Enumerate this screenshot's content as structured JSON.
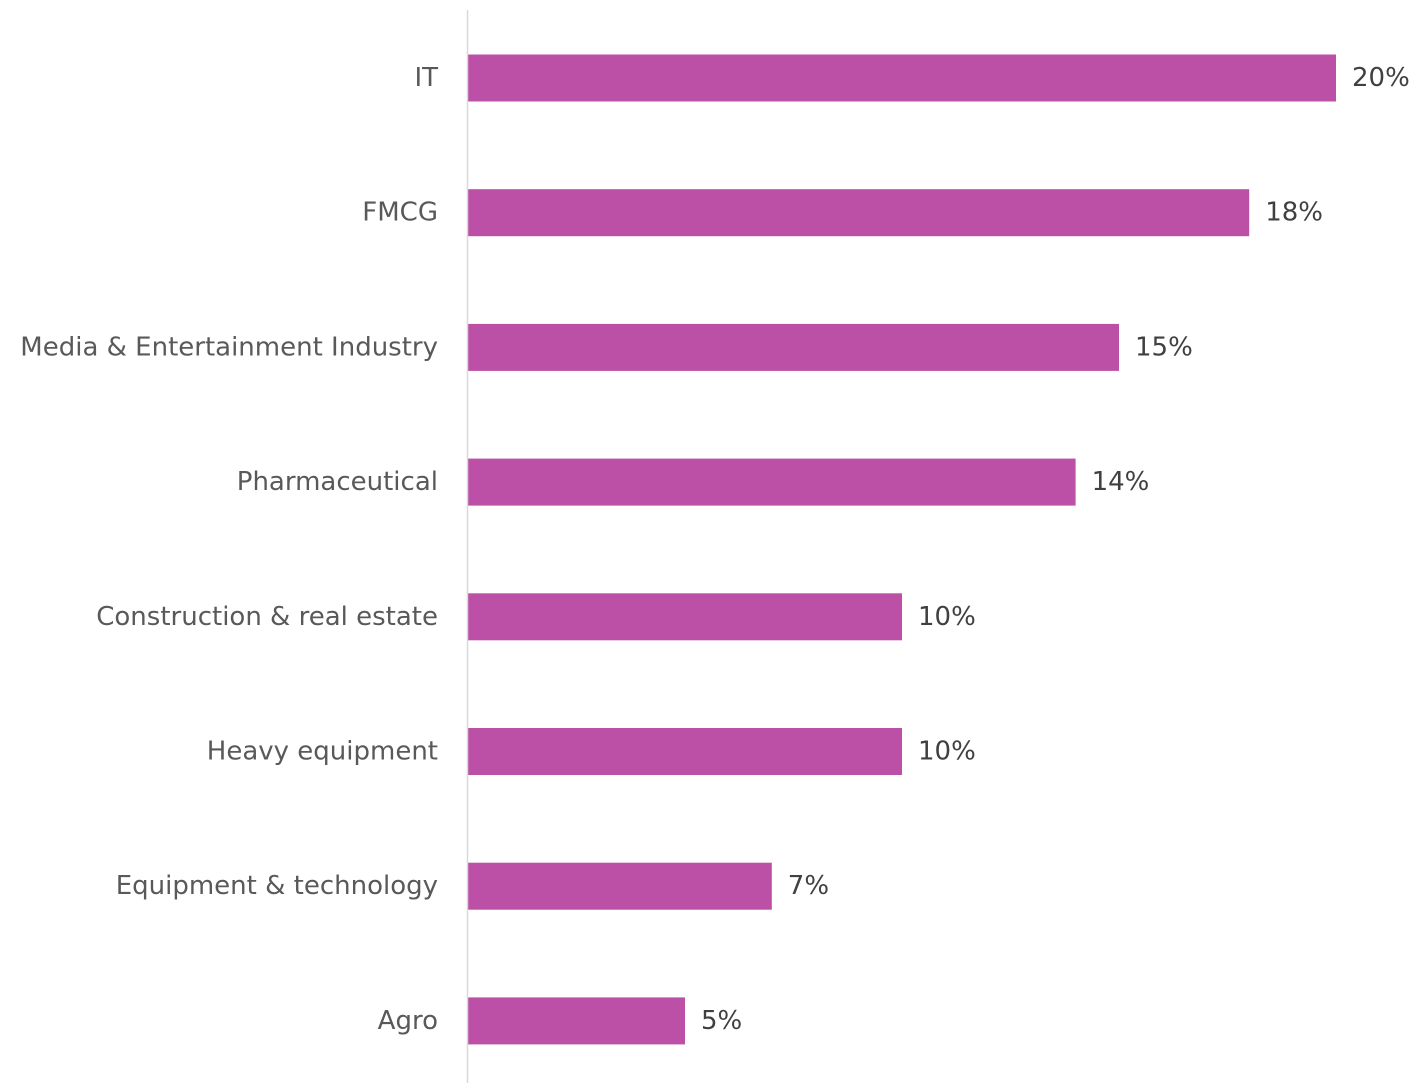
{
  "chart_data": {
    "type": "bar",
    "orientation": "horizontal",
    "categories": [
      "IT",
      "FMCG",
      "Media & Entertainment Industry",
      "Pharmaceutical",
      "Construction & real estate",
      "Heavy equipment",
      "Equipment & technology",
      "Agro"
    ],
    "values": [
      20,
      18,
      15,
      14,
      10,
      10,
      7,
      5
    ],
    "value_labels": [
      "20%",
      "18%",
      "15%",
      "14%",
      "10%",
      "10%",
      "7%",
      "5%"
    ],
    "unit": "%",
    "title": "",
    "xlabel": "",
    "ylabel": "",
    "xlim": [
      0,
      20
    ],
    "grid": false,
    "legend": "none",
    "colors": {
      "bar": "#BB50A6",
      "axis": "#D9D9D9"
    }
  }
}
